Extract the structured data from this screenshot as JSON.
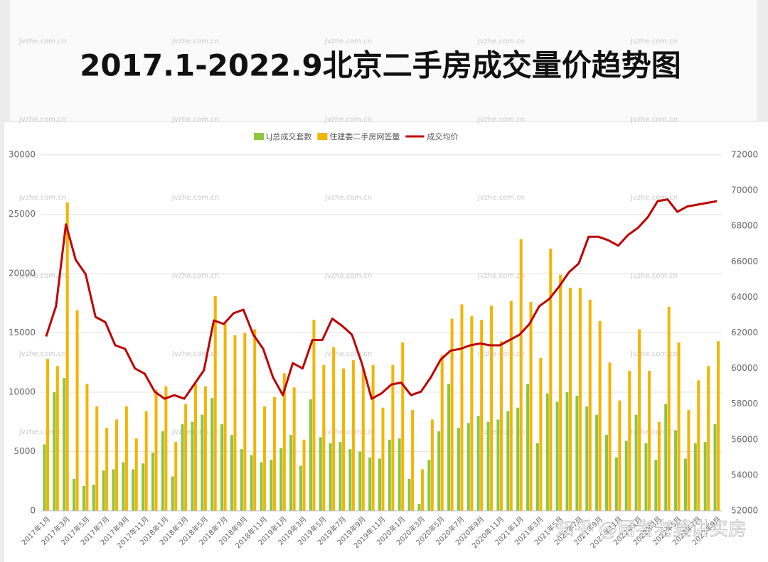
{
  "chart_data": {
    "type": "bar-line",
    "title": "2017.1-2022.9北京二手房成交量价趋势图",
    "watermark": "Jvzhe.com.cn",
    "credit": "知乎 @居者老莫讲买房",
    "categories": [
      "2017年1月",
      null,
      "2017年3月",
      null,
      "2017年5月",
      null,
      "2017年7月",
      null,
      "2017年9月",
      null,
      "2017年11月",
      null,
      "2018年1月",
      null,
      "2018年3月",
      null,
      "2018年5月",
      null,
      "2018年7月",
      null,
      "2018年9月",
      null,
      "2018年11月",
      null,
      "2019年1月",
      null,
      "2019年3月",
      null,
      "2019年5月",
      null,
      "2019年7月",
      null,
      "2019年9月",
      null,
      "2019年11月",
      null,
      "2020年1月",
      null,
      "2020年3月",
      null,
      "2020年5月",
      null,
      "2020年7月",
      null,
      "2020年9月",
      null,
      "2020年11月",
      null,
      "2021年1月",
      null,
      "2021年3月",
      null,
      "2021年5月",
      null,
      "2021年7月",
      null,
      "2021年9月",
      null,
      "2021年11月",
      null,
      "2022年1月",
      null,
      "2022年3月",
      null,
      "2022年5月",
      null,
      "2022年7月",
      null,
      "2022年9月"
    ],
    "series": [
      {
        "name": "LJ总成交套数",
        "color": "#8cc63e",
        "kind": "bar",
        "values": [
          5600,
          10000,
          11200,
          2700,
          2100,
          2200,
          3400,
          3500,
          4100,
          3500,
          4000,
          4900,
          6700,
          2900,
          7300,
          7500,
          8100,
          9500,
          7300,
          6400,
          5200,
          4700,
          4100,
          4300,
          5300,
          6400,
          3800,
          9400,
          6200,
          5700,
          5800,
          5200,
          5000,
          4500,
          4400,
          6000,
          6100,
          2700,
          600,
          4300,
          6700,
          10700,
          7000,
          7400,
          8000,
          7500,
          7700,
          8400,
          8700,
          10700,
          5700,
          9900,
          9200,
          10000,
          9700,
          8800,
          8100,
          6400,
          4500,
          5900,
          8100,
          5700,
          4300,
          9000,
          6800,
          4400,
          5700,
          5800,
          7300
        ]
      },
      {
        "name": "住建委二手房网签量",
        "color": "#f4b400",
        "kind": "bar",
        "values": [
          12800,
          12200,
          26000,
          16900,
          10700,
          8800,
          7000,
          7700,
          8800,
          6100,
          8400,
          10200,
          10500,
          5800,
          9000,
          10700,
          10500,
          18100,
          15800,
          14800,
          15000,
          15300,
          8800,
          9600,
          11600,
          10400,
          6000,
          16100,
          12300,
          13800,
          12000,
          12700,
          12000,
          12300,
          8700,
          12300,
          14200,
          8500,
          3500,
          7700,
          13100,
          16200,
          17400,
          16400,
          16100,
          17300,
          14300,
          17700,
          22900,
          17600,
          12900,
          22100,
          19900,
          18800,
          18800,
          17800,
          16000,
          12500,
          9300,
          11800,
          15300,
          11800,
          7500,
          17200,
          14200,
          8500,
          11000,
          12200,
          14300
        ]
      },
      {
        "name": "成交均价",
        "color": "#c00000",
        "kind": "line",
        "axis": "y2",
        "values": [
          61800,
          63500,
          68100,
          66100,
          65300,
          62900,
          62600,
          61300,
          61100,
          60000,
          59700,
          58700,
          58300,
          58500,
          58300,
          59100,
          59900,
          62700,
          62500,
          63100,
          63300,
          61900,
          61100,
          59500,
          58500,
          60300,
          60000,
          61600,
          61600,
          62800,
          62400,
          61900,
          60300,
          58300,
          58600,
          59100,
          59200,
          58500,
          58700,
          59500,
          60500,
          61000,
          61100,
          61300,
          61400,
          61300,
          61300,
          61600,
          61900,
          62500,
          63500,
          63900,
          64600,
          65400,
          65900,
          67400,
          67400,
          67200,
          66900,
          67500,
          67900,
          68500,
          69400,
          69500,
          68800,
          69100,
          69200,
          69300,
          69400
        ]
      }
    ],
    "ylim": [
      0,
      30000
    ],
    "yticks": [
      0,
      5000,
      10000,
      15000,
      20000,
      25000,
      30000
    ],
    "y2lim": [
      52000,
      72000
    ],
    "y2ticks": [
      52000,
      54000,
      56000,
      58000,
      60000,
      62000,
      64000,
      66000,
      68000,
      70000,
      72000
    ],
    "grid": true,
    "legend": "top"
  }
}
